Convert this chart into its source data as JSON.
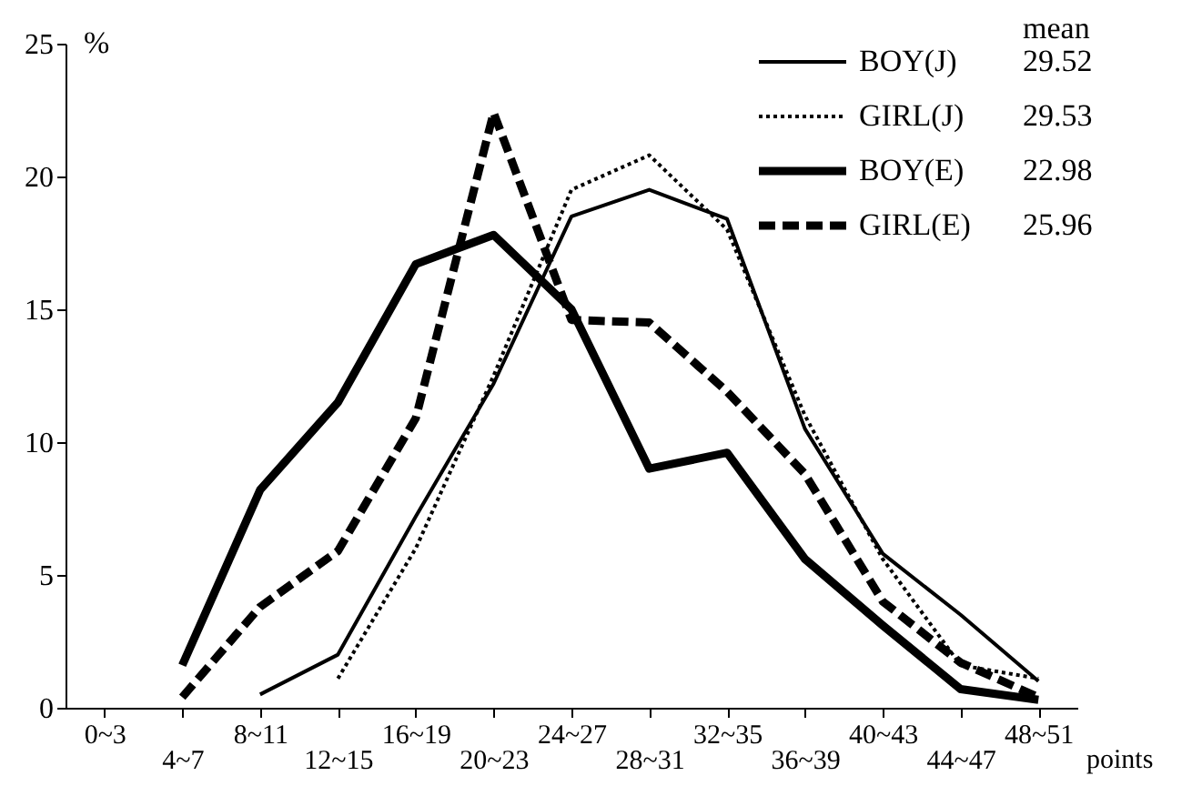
{
  "chart_data": {
    "type": "line",
    "xlabel": "points",
    "ylabel": "%",
    "categories": [
      "0~3",
      "4~7",
      "8~11",
      "12~15",
      "16~19",
      "20~23",
      "24~27",
      "28~31",
      "32~35",
      "36~39",
      "40~43",
      "44~47",
      "48~51"
    ],
    "series": [
      {
        "name": "BOY(J)",
        "color": "#000000",
        "line_style": "solid",
        "values": [
          null,
          null,
          0.5,
          2.0,
          7.2,
          12.2,
          18.5,
          19.5,
          18.4,
          10.5,
          5.8,
          3.5,
          1.0
        ]
      },
      {
        "name": "GIRL(J)",
        "color": "#000000",
        "line_style": "dotted",
        "values": [
          null,
          null,
          null,
          1.1,
          6.0,
          12.5,
          19.5,
          20.8,
          18.0,
          11.0,
          5.6,
          1.6,
          1.1
        ]
      },
      {
        "name": "BOY(E)",
        "color": "#000000",
        "line_style": "solid",
        "values": [
          null,
          1.6,
          8.2,
          11.5,
          16.7,
          17.8,
          15.0,
          9.0,
          9.6,
          5.6,
          3.1,
          0.7,
          0.3
        ]
      },
      {
        "name": "GIRL(E)",
        "color": "#000000",
        "line_style": "dashed",
        "values": [
          null,
          0.4,
          3.8,
          5.9,
          10.9,
          22.4,
          14.6,
          14.5,
          11.9,
          8.8,
          4.0,
          1.7,
          0.4
        ]
      }
    ],
    "annotations": [
      "mean",
      "29.52",
      "29.53",
      "22.98",
      "25.96"
    ],
    "ylim": [
      0,
      25
    ],
    "yticks": [
      0,
      5,
      10,
      15,
      20,
      25
    ],
    "grid": false,
    "legend": "top right",
    "marker": "none"
  }
}
